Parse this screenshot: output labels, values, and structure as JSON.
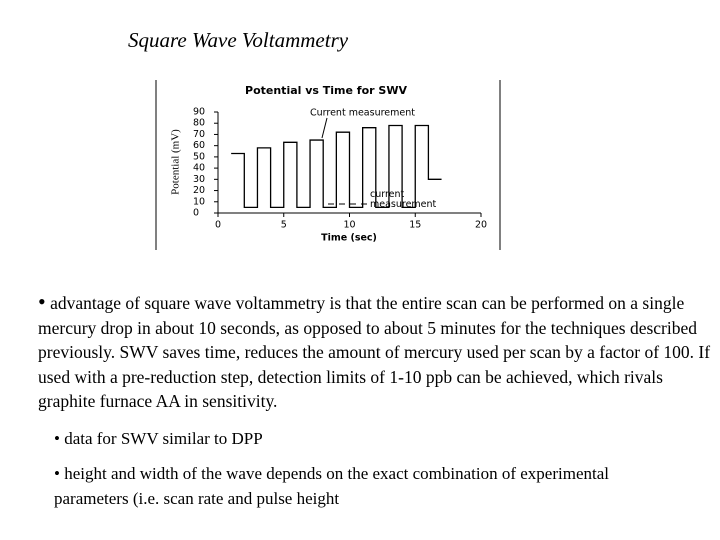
{
  "title": "Square Wave Voltammetry",
  "chart_data": {
    "type": "line",
    "title": "Potential vs Time for SWV",
    "x_label": "Time (sec)",
    "y_label": "Potential (mV)",
    "x": [
      1,
      2,
      2,
      3,
      3,
      4,
      4,
      5,
      5,
      6,
      6,
      7,
      7,
      8,
      8,
      9,
      9,
      10,
      10,
      11,
      11,
      12,
      12,
      13,
      13,
      14,
      14,
      15,
      15,
      16,
      16,
      17
    ],
    "y": [
      53,
      53,
      5,
      5,
      58,
      58,
      5,
      5,
      63,
      63,
      5,
      5,
      65,
      65,
      5,
      5,
      72,
      72,
      5,
      5,
      76,
      76,
      5,
      5,
      78,
      78,
      5,
      5,
      78,
      78,
      30,
      30
    ],
    "color": "#000000",
    "xlim": [
      0,
      20
    ],
    "ylim": [
      0,
      90
    ],
    "xticks": [
      0,
      5,
      10,
      15,
      20
    ],
    "yticks": [
      0,
      10,
      20,
      30,
      40,
      50,
      60,
      70,
      80,
      90
    ],
    "annotations": [
      "Current measurement",
      "current measurement"
    ]
  },
  "bullets": [
    "advantage of square wave voltammetry is that the entire scan can be performed on a single mercury drop in about 10 seconds, as opposed to about 5 minutes for the techniques described previously. SWV saves time, reduces the amount of mercury used per scan by a factor of 100. If used with a pre-reduction step, detection limits of 1-10 ppb can be achieved, which rivals graphite furnace AA in sensitivity.",
    "data for SWV similar to DPP",
    "height and width of the wave depends on the exact combination of experimental parameters (i.e. scan rate and pulse height"
  ]
}
